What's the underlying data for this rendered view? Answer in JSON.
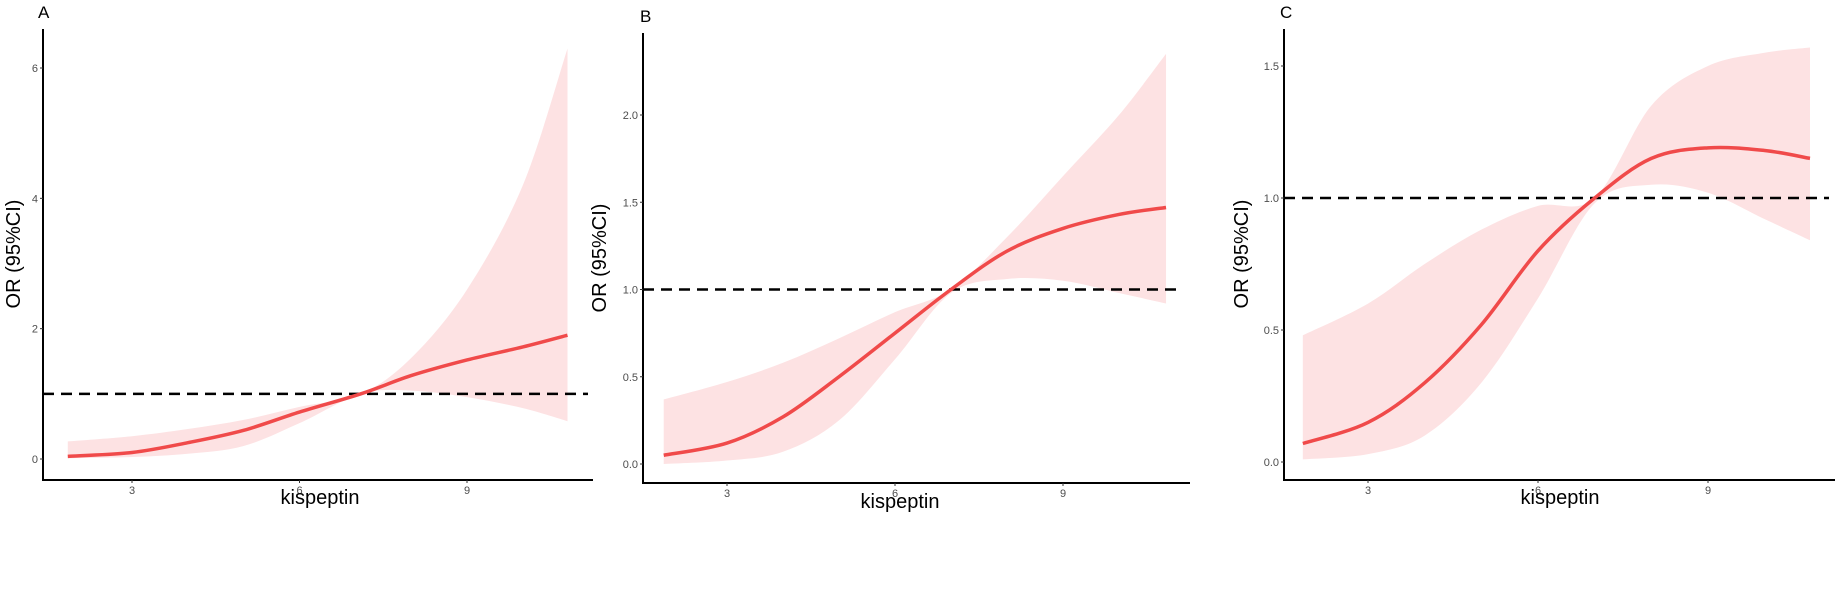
{
  "chart_data": [
    {
      "type": "line",
      "panel_label": "A",
      "xlabel": "kispeptin",
      "ylabel": "OR (95%CI)",
      "xlim": [
        1.4,
        11.26
      ],
      "ylim": [
        -0.32,
        6.6
      ],
      "x_ticks": [
        3,
        6,
        9
      ],
      "y_ticks": [
        0,
        2,
        4,
        6
      ],
      "y_tick_labels": [
        "0",
        "2",
        "4",
        "6"
      ],
      "grid": false,
      "reference_line": 1.0,
      "colors": {
        "line": "#f04a4a",
        "ribbon": "#fde2e3",
        "reference": "#000000"
      },
      "x": [
        1.85,
        3,
        4,
        5,
        6,
        7.1,
        8,
        9,
        10,
        10.8
      ],
      "y": [
        0.04,
        0.1,
        0.25,
        0.44,
        0.72,
        1.0,
        1.28,
        1.52,
        1.72,
        1.9
      ],
      "upper": [
        0.27,
        0.35,
        0.46,
        0.6,
        0.8,
        1.0,
        1.55,
        2.6,
        4.2,
        6.3
      ],
      "lower": [
        0.01,
        0.03,
        0.08,
        0.2,
        0.55,
        1.0,
        1.05,
        0.95,
        0.78,
        0.58
      ]
    },
    {
      "type": "line",
      "panel_label": "B",
      "xlabel": "kispeptin",
      "ylabel": "OR (95%CI)",
      "xlim": [
        1.5,
        11.27
      ],
      "ylim": [
        -0.11,
        2.47
      ],
      "x_ticks": [
        3,
        6,
        9
      ],
      "y_ticks": [
        0,
        0.5,
        1,
        1.5,
        2
      ],
      "y_tick_labels": [
        "0.0",
        "0.5",
        "1.0",
        "1.5",
        "2.0"
      ],
      "grid": false,
      "reference_line": 1.0,
      "colors": {
        "line": "#f04a4a",
        "ribbon": "#fde2e3",
        "reference": "#000000"
      },
      "x": [
        1.87,
        3,
        4,
        5,
        6,
        7,
        8,
        9,
        10,
        10.84
      ],
      "y": [
        0.05,
        0.12,
        0.27,
        0.5,
        0.75,
        1.0,
        1.22,
        1.35,
        1.43,
        1.47
      ],
      "upper": [
        0.37,
        0.47,
        0.58,
        0.72,
        0.87,
        1.0,
        1.3,
        1.65,
        2.0,
        2.35
      ],
      "lower": [
        0.0,
        0.02,
        0.07,
        0.25,
        0.6,
        0.98,
        1.06,
        1.05,
        0.98,
        0.92
      ]
    },
    {
      "type": "line",
      "panel_label": "C",
      "xlabel": "kispeptin",
      "ylabel": "OR (95%CI)",
      "xlim": [
        1.52,
        11.24
      ],
      "ylim": [
        -0.07,
        1.64
      ],
      "x_ticks": [
        3,
        6,
        9
      ],
      "y_ticks": [
        0,
        0.5,
        1,
        1.5
      ],
      "y_tick_labels": [
        "0.0",
        "0.5",
        "1.0",
        "1.5"
      ],
      "grid": false,
      "reference_line": 1.0,
      "colors": {
        "line": "#f04a4a",
        "ribbon": "#fde2e3",
        "reference": "#000000"
      },
      "x": [
        1.85,
        3,
        4,
        5,
        6,
        7,
        8,
        9,
        10,
        10.8
      ],
      "y": [
        0.07,
        0.15,
        0.3,
        0.52,
        0.8,
        1.0,
        1.15,
        1.19,
        1.18,
        1.15
      ],
      "upper": [
        0.48,
        0.6,
        0.75,
        0.88,
        0.97,
        1.0,
        1.35,
        1.5,
        1.55,
        1.57
      ],
      "lower": [
        0.01,
        0.03,
        0.1,
        0.3,
        0.62,
        0.98,
        1.05,
        1.02,
        0.92,
        0.84
      ]
    }
  ]
}
